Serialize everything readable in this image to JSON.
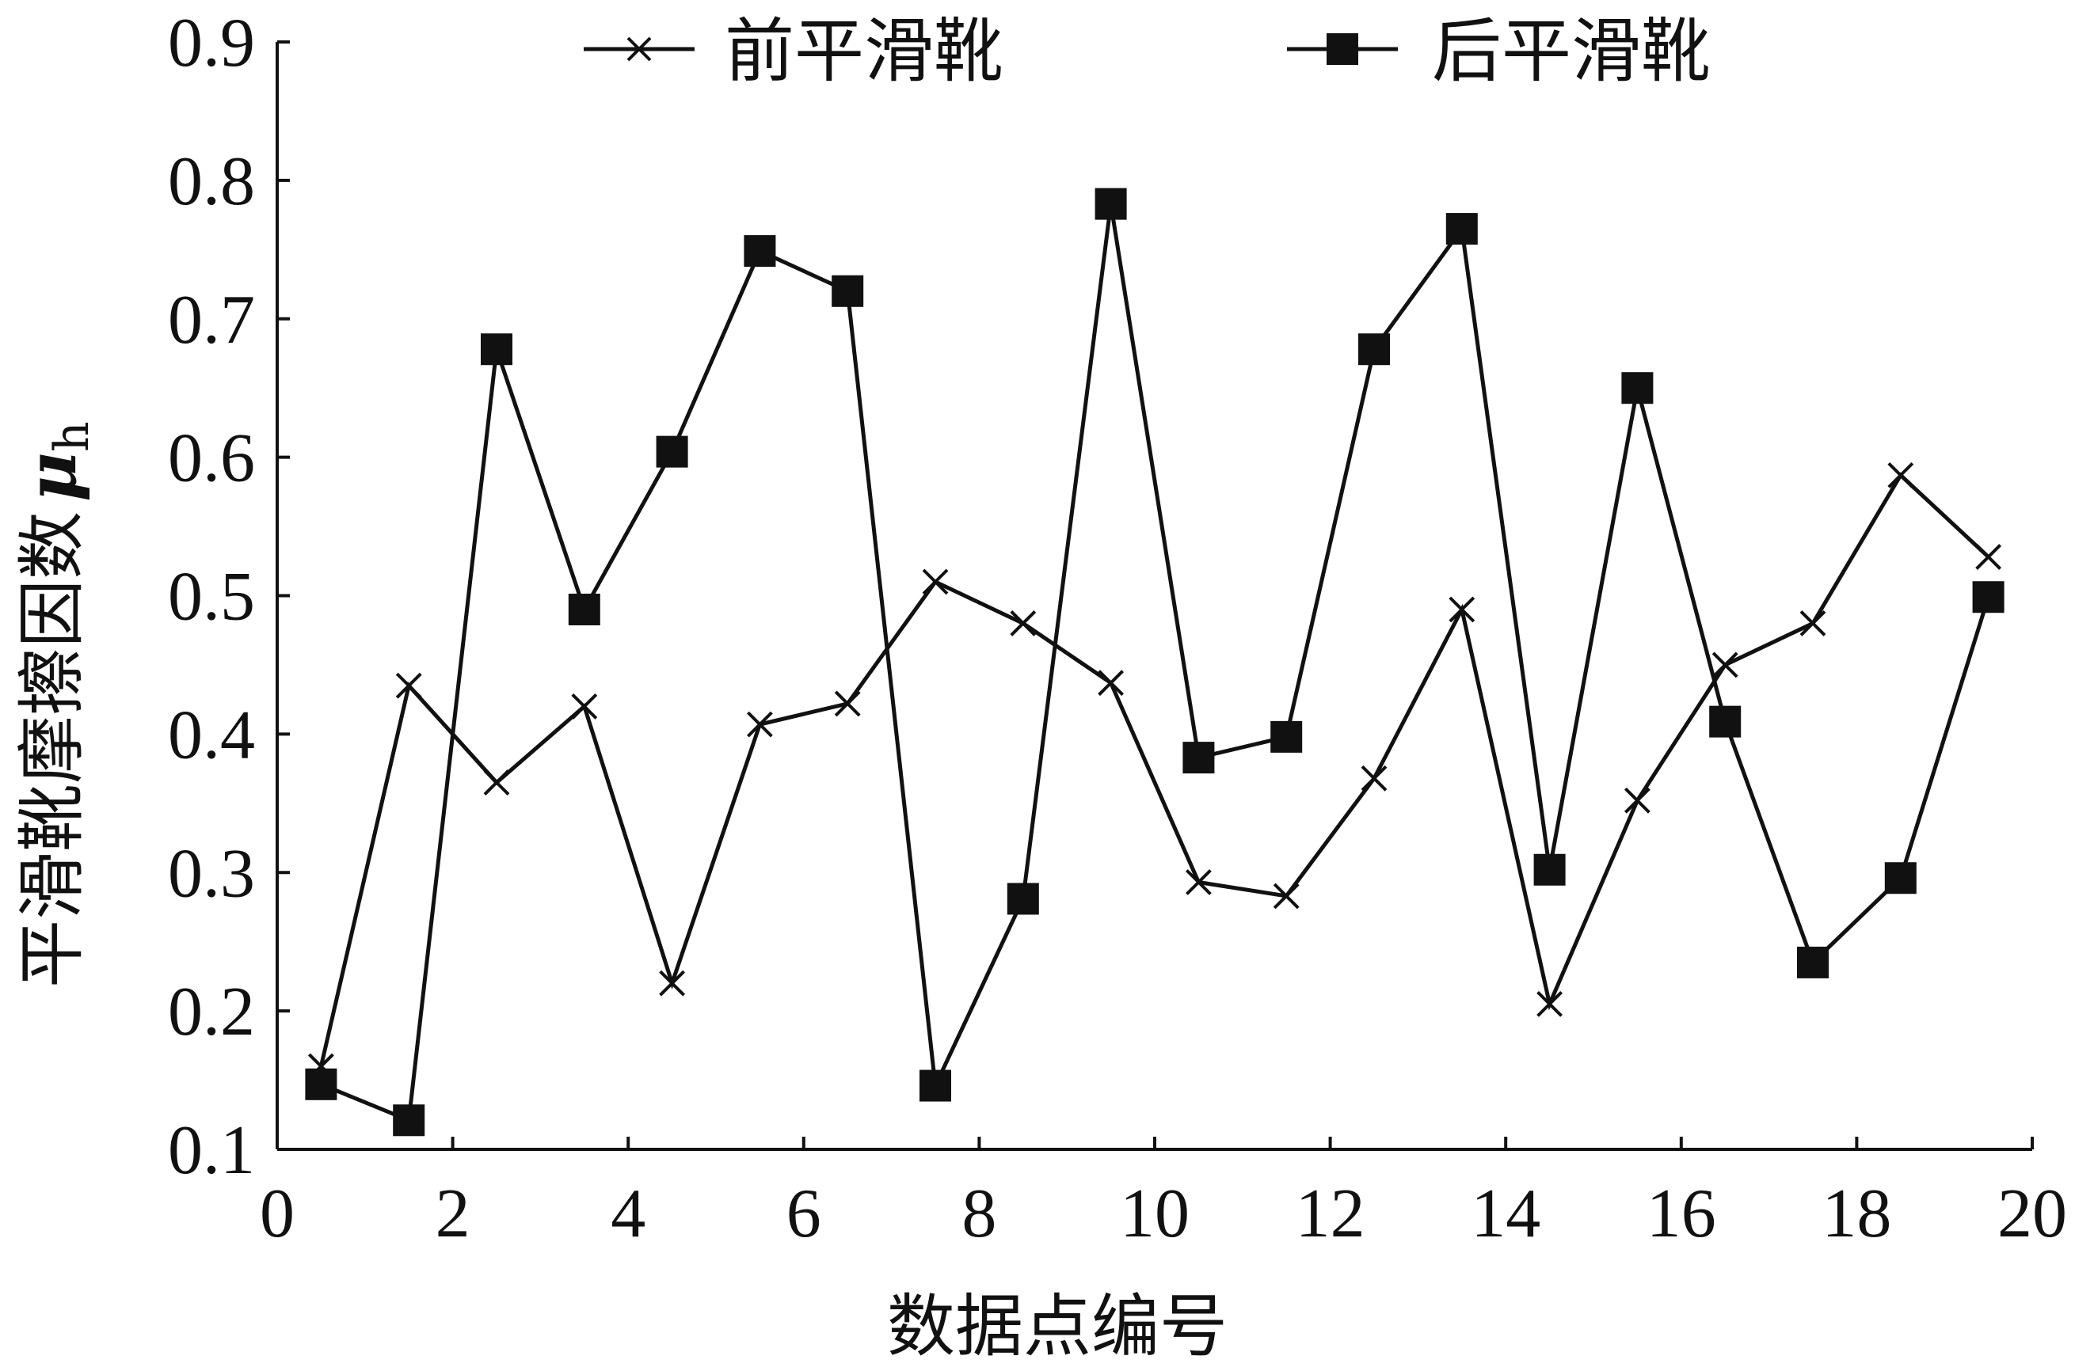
{
  "chart_data": {
    "type": "line",
    "xlabel": "数据点编号",
    "ylabel": "平滑靴摩擦因数",
    "ylabel_symbol": "μ",
    "ylabel_subscript": "h",
    "xlim": [
      0,
      20
    ],
    "ylim": [
      0.1,
      0.9
    ],
    "xticks": [
      0,
      2,
      4,
      6,
      8,
      10,
      12,
      14,
      16,
      18,
      20
    ],
    "yticks": [
      0.1,
      0.2,
      0.3,
      0.4,
      0.5,
      0.6,
      0.7,
      0.8,
      0.9
    ],
    "xtick_labels": [
      "0",
      "2",
      "4",
      "6",
      "8",
      "10",
      "12",
      "14",
      "16",
      "18",
      "20"
    ],
    "ytick_labels": [
      "0.1",
      "0.2",
      "0.3",
      "0.4",
      "0.5",
      "0.6",
      "0.7",
      "0.8",
      "0.9"
    ],
    "grid": false,
    "legend_position": "top",
    "series": [
      {
        "name": "前平滑靴",
        "marker": "x",
        "x": [
          0.5,
          1.5,
          2.5,
          3.5,
          4.5,
          5.5,
          6.5,
          7.5,
          8.5,
          9.5,
          10.5,
          11.5,
          12.5,
          13.5,
          14.5,
          15.5,
          16.5,
          17.5,
          18.5,
          19.5
        ],
        "values": [
          0.16,
          0.435,
          0.365,
          0.42,
          0.22,
          0.407,
          0.422,
          0.51,
          0.48,
          0.437,
          0.293,
          0.283,
          0.368,
          0.49,
          0.205,
          0.352,
          0.45,
          0.48,
          0.587,
          0.528
        ]
      },
      {
        "name": "后平滑靴",
        "marker": "square",
        "x": [
          0.5,
          1.5,
          2.5,
          3.5,
          4.5,
          5.5,
          6.5,
          7.5,
          8.5,
          9.5,
          10.5,
          11.5,
          12.5,
          13.5,
          14.5,
          15.5,
          16.5,
          17.5,
          18.5,
          19.5
        ],
        "values": [
          0.147,
          0.121,
          0.678,
          0.49,
          0.604,
          0.749,
          0.72,
          0.146,
          0.281,
          0.783,
          0.383,
          0.398,
          0.678,
          0.765,
          0.302,
          0.65,
          0.409,
          0.235,
          0.296,
          0.499
        ]
      }
    ],
    "colors": {
      "line": "#111111",
      "axis": "#111111"
    }
  }
}
